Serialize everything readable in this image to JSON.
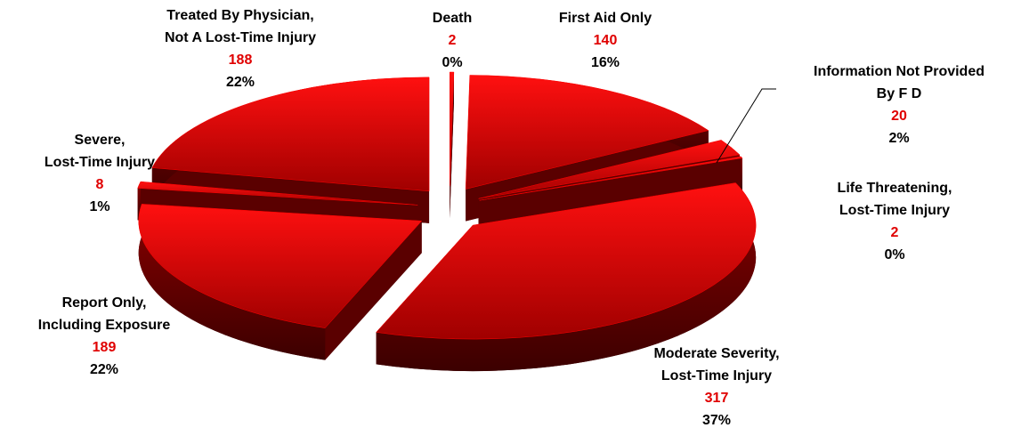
{
  "chart_data": {
    "type": "pie3d",
    "categories": [
      "Death",
      "First Aid Only",
      "Information Not Provided\nBy F D",
      "Life Threatening,\nLost-Time Injury",
      "Moderate Severity,\nLost-Time Injury",
      "Report Only,\nIncluding Exposure",
      "Severe,\nLost-Time Injury",
      "Treated By Physician,\nNot A Lost-Time Injury"
    ],
    "values": [
      2,
      140,
      20,
      2,
      317,
      189,
      8,
      188
    ],
    "percent_labels": [
      "0%",
      "16%",
      "2%",
      "0%",
      "37%",
      "22%",
      "1%",
      "22%"
    ],
    "color": "#ff0000"
  }
}
